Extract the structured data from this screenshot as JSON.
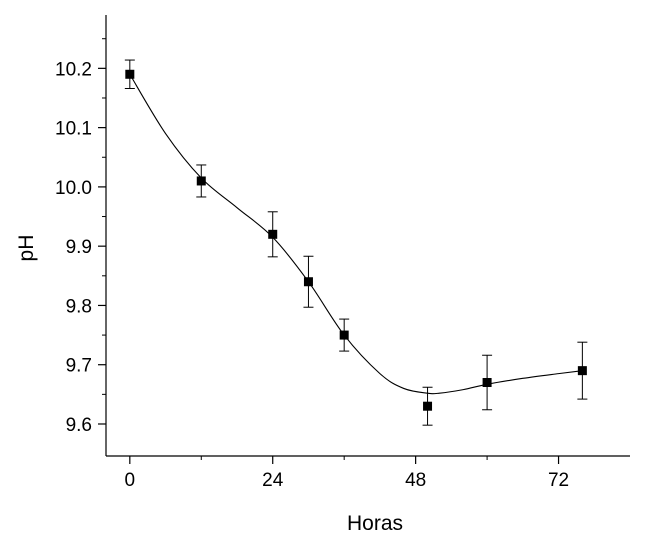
{
  "chart_data": {
    "type": "scatter",
    "title": "",
    "xlabel": "Horas",
    "ylabel": "pH",
    "xlim": [
      -4,
      84
    ],
    "ylim": [
      9.546,
      10.29
    ],
    "x_ticks": [
      0,
      24,
      48,
      72
    ],
    "x_tick_labels": [
      "0",
      "24",
      "48",
      "72"
    ],
    "x_minor_ticks": [
      12,
      36,
      60
    ],
    "y_ticks": [
      9.6,
      9.7,
      9.8,
      9.9,
      10.0,
      10.1,
      10.2
    ],
    "y_tick_labels": [
      "9.6",
      "9.7",
      "9.8",
      "9.9",
      "10.0",
      "10.1",
      "10.2"
    ],
    "y_minor_ticks": [
      9.65,
      9.75,
      9.85,
      9.95,
      10.05,
      10.15,
      10.25
    ],
    "grid": false,
    "legend": "none",
    "marker": "square",
    "color": "#000000",
    "fit_line": "smooth spline through points",
    "series": [
      {
        "x": [
          0,
          12,
          24,
          30,
          36,
          50,
          60,
          76
        ],
        "y": [
          10.19,
          10.01,
          9.92,
          9.84,
          9.75,
          9.63,
          9.67,
          9.69
        ],
        "err": [
          0.024,
          0.027,
          0.038,
          0.043,
          0.027,
          0.032,
          0.046,
          0.048
        ]
      }
    ],
    "fit_curve": {
      "x": [
        0,
        6,
        12,
        18,
        24,
        30,
        36,
        42,
        46,
        50,
        52,
        56,
        60,
        66,
        72,
        76
      ],
      "y": [
        10.19,
        10.09,
        10.015,
        9.965,
        9.915,
        9.84,
        9.75,
        9.685,
        9.66,
        9.652,
        9.652,
        9.658,
        9.667,
        9.677,
        9.685,
        9.69
      ]
    }
  }
}
